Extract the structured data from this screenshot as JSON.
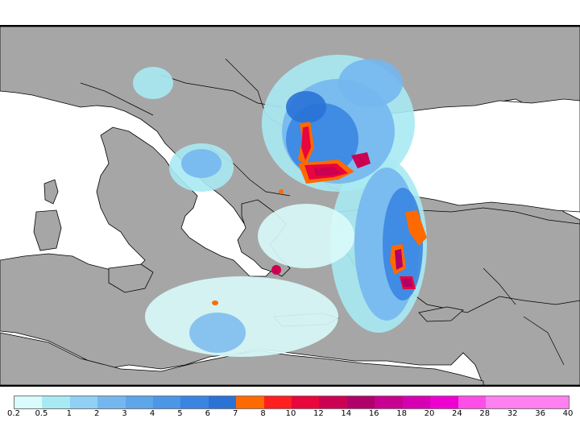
{
  "map": {
    "land_color": "#a6a6a6",
    "sea_color": "#ffffff",
    "border_color": "#000000"
  },
  "legend": {
    "colors": [
      "#d9fbfb",
      "#a8eaf3",
      "#8fd0f4",
      "#74b7ef",
      "#5da6ea",
      "#4b96e6",
      "#3a85e1",
      "#2a72d6",
      "#ff6a00",
      "#ff1f1f",
      "#e8063c",
      "#cc0052",
      "#b0006a",
      "#c80090",
      "#d600b2",
      "#ee00d0",
      "#ff4ee8",
      "#ff80f0",
      "#ff80f0",
      "#ff80f0",
      "#ff80f0"
    ],
    "labels": [
      "0.2",
      "0.5",
      "1",
      "2",
      "3",
      "4",
      "5",
      "6",
      "7",
      "8",
      "10",
      "12",
      "14",
      "16",
      "18",
      "20",
      "24",
      "28",
      "32",
      "36",
      "40"
    ]
  }
}
